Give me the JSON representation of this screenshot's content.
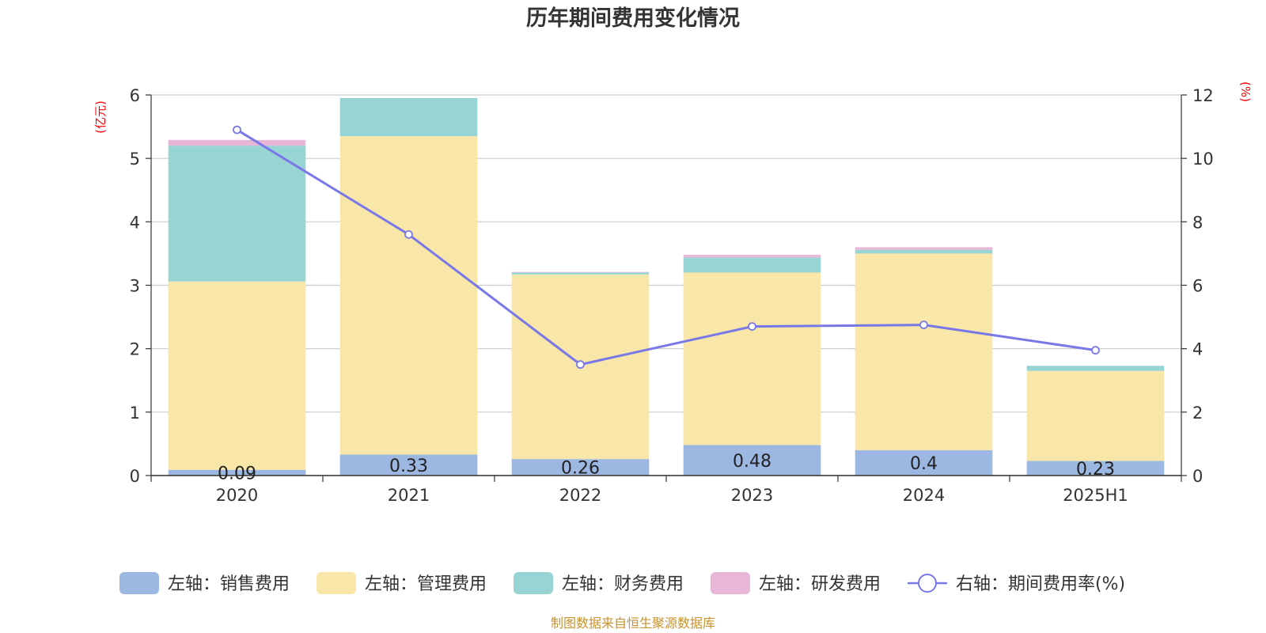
{
  "chart_data": {
    "type": "bar",
    "title": "历年期间费用变化情况",
    "categories": [
      "2020",
      "2021",
      "2022",
      "2023",
      "2024",
      "2025H1"
    ],
    "series": [
      {
        "name": "左轴：销售费用",
        "axis": "left",
        "kind": "bar",
        "color": "#9cb7e1",
        "values": [
          0.09,
          0.33,
          0.26,
          0.48,
          0.4,
          0.23
        ],
        "data_labels": [
          "0.09",
          "0.33",
          "0.26",
          "0.48",
          "0.4",
          "0.23"
        ]
      },
      {
        "name": "左轴：管理费用",
        "axis": "left",
        "kind": "bar",
        "color": "#f8e7a8",
        "values": [
          2.97,
          5.02,
          2.91,
          2.72,
          3.1,
          1.42
        ]
      },
      {
        "name": "左轴：财务费用",
        "axis": "left",
        "kind": "bar",
        "color": "#98d4d4",
        "values": [
          2.14,
          0.6,
          0.03,
          0.24,
          0.06,
          0.08
        ]
      },
      {
        "name": "左轴：研发费用",
        "axis": "left",
        "kind": "bar",
        "color": "#e8b7d8",
        "values": [
          0.09,
          0.0,
          0.01,
          0.04,
          0.04,
          0.0
        ]
      },
      {
        "name": "右轴：期间费用率(%)",
        "axis": "right",
        "kind": "line",
        "color": "#7878e8",
        "values": [
          10.9,
          7.6,
          3.5,
          4.7,
          4.75,
          3.95
        ]
      }
    ],
    "y_left": {
      "label": "(亿元)",
      "range": [
        0,
        6
      ],
      "ticks": [
        "0",
        "1",
        "2",
        "3",
        "4",
        "5",
        "6"
      ]
    },
    "y_right": {
      "label": "(%)",
      "range": [
        0,
        12
      ],
      "ticks": [
        "0",
        "2",
        "4",
        "6",
        "8",
        "10",
        "12"
      ]
    },
    "grid": true,
    "legend_position": "bottom"
  },
  "source_note": "制图数据来自恒生聚源数据库"
}
